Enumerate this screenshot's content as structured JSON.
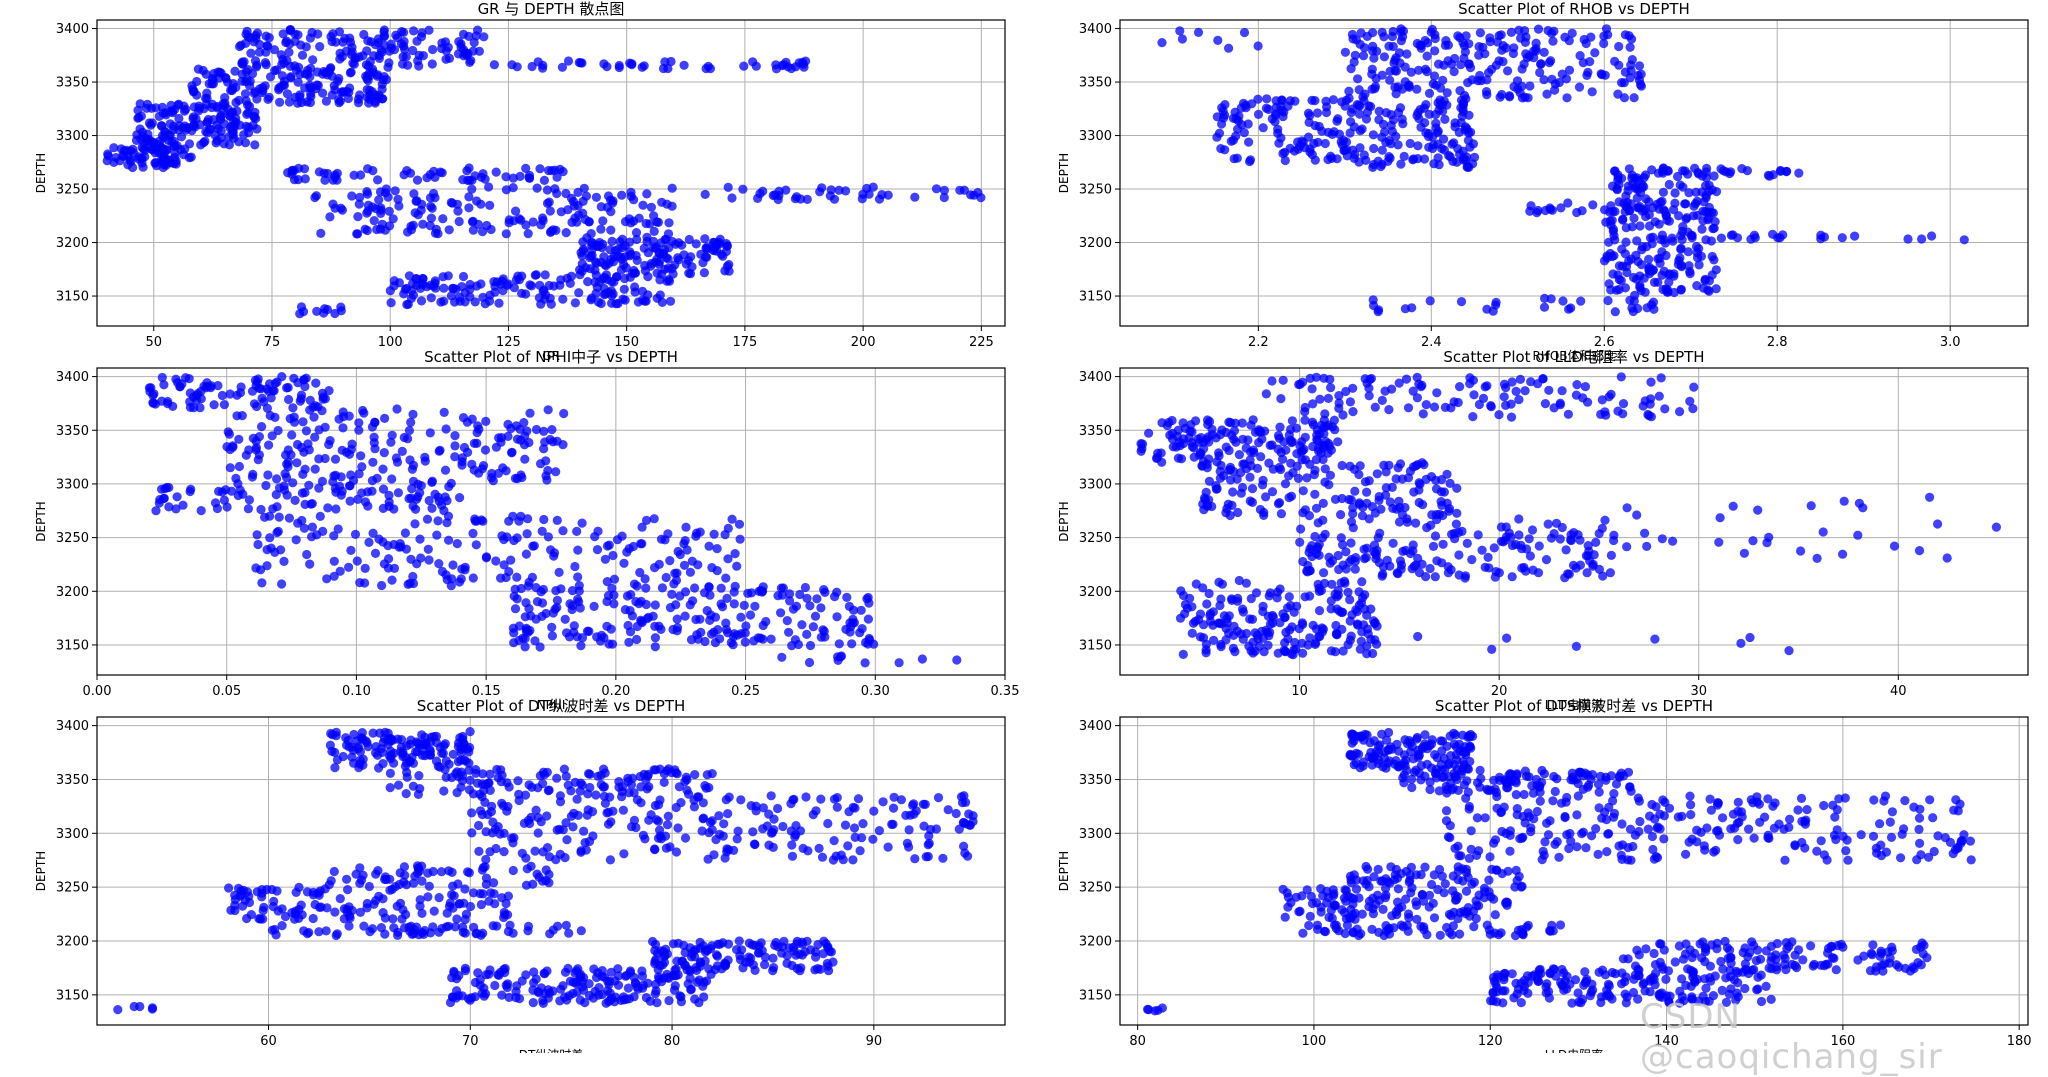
{
  "colors": {
    "marker": "#0000ff",
    "grid": "#b0b0b0",
    "axis": "#000000",
    "text": "#000000"
  },
  "watermark": "CSDN @caoqichang_sir",
  "chart_data": [
    {
      "type": "scatter",
      "title": "GR 与 DEPTH 散点图",
      "xlabel": "GR",
      "ylabel": "DEPTH",
      "xlim": [
        38,
        230
      ],
      "ylim": [
        3122,
        3408
      ],
      "xticks": [
        50,
        75,
        100,
        125,
        150,
        175,
        200,
        225
      ],
      "yticks": [
        3150,
        3200,
        3250,
        3300,
        3350,
        3400
      ],
      "grid": true,
      "clusters": [
        {
          "x": [
            40,
            58
          ],
          "y": [
            3270,
            3290
          ],
          "n": 70
        },
        {
          "x": [
            46,
            72
          ],
          "y": [
            3290,
            3330
          ],
          "n": 150
        },
        {
          "x": [
            58,
            100
          ],
          "y": [
            3330,
            3365
          ],
          "n": 160
        },
        {
          "x": [
            68,
            120
          ],
          "y": [
            3365,
            3400
          ],
          "n": 150
        },
        {
          "x": [
            120,
            190
          ],
          "y": [
            3362,
            3370
          ],
          "n": 45
        },
        {
          "x": [
            77,
            140
          ],
          "y": [
            3258,
            3270
          ],
          "n": 60
        },
        {
          "x": [
            82,
            225
          ],
          "y": [
            3240,
            3252
          ],
          "n": 80
        },
        {
          "x": [
            85,
            160
          ],
          "y": [
            3208,
            3240
          ],
          "n": 130
        },
        {
          "x": [
            140,
            172
          ],
          "y": [
            3170,
            3205
          ],
          "n": 140
        },
        {
          "x": [
            100,
            160
          ],
          "y": [
            3142,
            3170
          ],
          "n": 150
        },
        {
          "x": [
            80,
            90
          ],
          "y": [
            3133,
            3140
          ],
          "n": 10
        }
      ]
    },
    {
      "type": "scatter",
      "title": "Scatter Plot of RHOB vs DEPTH",
      "xlabel": "RHOB体积密度",
      "ylabel": "DEPTH",
      "xlim": [
        2.04,
        3.09
      ],
      "ylim": [
        3122,
        3408
      ],
      "xticks": [
        2.2,
        2.4,
        2.6,
        2.8,
        3.0
      ],
      "yticks": [
        3150,
        3200,
        3250,
        3300,
        3350,
        3400
      ],
      "grid": true,
      "clusters": [
        {
          "x": [
            2.15,
            2.45
          ],
          "y": [
            3270,
            3335
          ],
          "n": 250
        },
        {
          "x": [
            2.3,
            2.65
          ],
          "y": [
            3335,
            3400
          ],
          "n": 230
        },
        {
          "x": [
            2.08,
            2.2
          ],
          "y": [
            3380,
            3400
          ],
          "n": 8
        },
        {
          "x": [
            2.6,
            2.73
          ],
          "y": [
            3150,
            3270
          ],
          "n": 250
        },
        {
          "x": [
            2.73,
            2.83
          ],
          "y": [
            3262,
            3270
          ],
          "n": 15
        },
        {
          "x": [
            2.73,
            3.05
          ],
          "y": [
            3202,
            3208
          ],
          "n": 20
        },
        {
          "x": [
            2.5,
            2.72
          ],
          "y": [
            3228,
            3237
          ],
          "n": 25
        },
        {
          "x": [
            2.33,
            2.66
          ],
          "y": [
            3135,
            3148
          ],
          "n": 30
        }
      ]
    },
    {
      "type": "scatter",
      "title": "Scatter Plot of NPHI中子 vs DEPTH",
      "xlabel": "NPHI",
      "ylabel": "DEPTH",
      "xlim": [
        0.0,
        0.35
      ],
      "ylim": [
        3122,
        3408
      ],
      "xticks": [
        0.0,
        0.05,
        0.1,
        0.15,
        0.2,
        0.25,
        0.3,
        0.35
      ],
      "yticks": [
        3150,
        3200,
        3250,
        3300,
        3350,
        3400
      ],
      "grid": true,
      "clusters": [
        {
          "x": [
            0.02,
            0.09
          ],
          "y": [
            3370,
            3400
          ],
          "n": 90
        },
        {
          "x": [
            0.05,
            0.18
          ],
          "y": [
            3300,
            3370
          ],
          "n": 200
        },
        {
          "x": [
            0.02,
            0.14
          ],
          "y": [
            3275,
            3300
          ],
          "n": 90
        },
        {
          "x": [
            0.06,
            0.25
          ],
          "y": [
            3205,
            3270
          ],
          "n": 200
        },
        {
          "x": [
            0.16,
            0.3
          ],
          "y": [
            3148,
            3205
          ],
          "n": 230
        },
        {
          "x": [
            0.26,
            0.335
          ],
          "y": [
            3133,
            3140
          ],
          "n": 10
        }
      ]
    },
    {
      "type": "scatter",
      "title": "Scatter Plot of LLD电阻率 vs DEPTH",
      "xlabel": "LLD电阻率",
      "ylabel": "DEPTH",
      "xlim": [
        1,
        46.5
      ],
      "ylim": [
        3122,
        3408
      ],
      "xticks": [
        10,
        20,
        30,
        40
      ],
      "yticks": [
        3150,
        3200,
        3250,
        3300,
        3350,
        3400
      ],
      "grid": true,
      "clusters": [
        {
          "x": [
            2,
            12
          ],
          "y": [
            3320,
            3360
          ],
          "n": 150
        },
        {
          "x": [
            5,
            18
          ],
          "y": [
            3270,
            3320
          ],
          "n": 160
        },
        {
          "x": [
            8,
            30
          ],
          "y": [
            3362,
            3400
          ],
          "n": 120
        },
        {
          "x": [
            10,
            26
          ],
          "y": [
            3212,
            3268
          ],
          "n": 180
        },
        {
          "x": [
            26,
            45
          ],
          "y": [
            3230,
            3290
          ],
          "n": 30
        },
        {
          "x": [
            4,
            14
          ],
          "y": [
            3140,
            3210
          ],
          "n": 200
        },
        {
          "x": [
            14,
            35
          ],
          "y": [
            3140,
            3160
          ],
          "n": 8
        }
      ]
    },
    {
      "type": "scatter",
      "title": "Scatter Plot of DT纵波时差 vs DEPTH",
      "xlabel": "DT纵波时差",
      "ylabel": "DEPTH",
      "xlim": [
        51.5,
        96.5
      ],
      "ylim": [
        3122,
        3408
      ],
      "xticks": [
        60,
        70,
        80,
        90
      ],
      "yticks": [
        3150,
        3200,
        3250,
        3300,
        3350,
        3400
      ],
      "grid": true,
      "clusters": [
        {
          "x": [
            63,
            70
          ],
          "y": [
            3360,
            3395
          ],
          "n": 130
        },
        {
          "x": [
            66,
            82
          ],
          "y": [
            3335,
            3360
          ],
          "n": 120
        },
        {
          "x": [
            70,
            95
          ],
          "y": [
            3275,
            3335
          ],
          "n": 250
        },
        {
          "x": [
            58,
            72
          ],
          "y": [
            3220,
            3250
          ],
          "n": 120
        },
        {
          "x": [
            63,
            74
          ],
          "y": [
            3250,
            3270
          ],
          "n": 60
        },
        {
          "x": [
            60,
            76
          ],
          "y": [
            3205,
            3215
          ],
          "n": 60
        },
        {
          "x": [
            79,
            88
          ],
          "y": [
            3172,
            3200
          ],
          "n": 130
        },
        {
          "x": [
            69,
            82
          ],
          "y": [
            3142,
            3175
          ],
          "n": 180
        },
        {
          "x": [
            52.5,
            54.5
          ],
          "y": [
            3134,
            3140
          ],
          "n": 5
        }
      ]
    },
    {
      "type": "scatter",
      "title": "Scatter Plot of DTS横波时差 vs DEPTH",
      "xlabel": "LLD电阻率",
      "ylabel": "DEPTH",
      "xlim": [
        78,
        181
      ],
      "ylim": [
        3122,
        3408
      ],
      "xticks": [
        80,
        100,
        120,
        140,
        160,
        180
      ],
      "yticks": [
        3150,
        3200,
        3250,
        3300,
        3350,
        3400
      ],
      "grid": true,
      "clusters": [
        {
          "x": [
            104,
            118
          ],
          "y": [
            3360,
            3395
          ],
          "n": 130
        },
        {
          "x": [
            110,
            136
          ],
          "y": [
            3335,
            3360
          ],
          "n": 120
        },
        {
          "x": [
            115,
            175
          ],
          "y": [
            3275,
            3335
          ],
          "n": 250
        },
        {
          "x": [
            96,
            122
          ],
          "y": [
            3220,
            3250
          ],
          "n": 120
        },
        {
          "x": [
            104,
            124
          ],
          "y": [
            3250,
            3270
          ],
          "n": 60
        },
        {
          "x": [
            98,
            128
          ],
          "y": [
            3205,
            3215
          ],
          "n": 60
        },
        {
          "x": [
            135,
            170
          ],
          "y": [
            3172,
            3200
          ],
          "n": 130
        },
        {
          "x": [
            120,
            152
          ],
          "y": [
            3142,
            3175
          ],
          "n": 180
        },
        {
          "x": [
            80,
            84
          ],
          "y": [
            3134,
            3140
          ],
          "n": 5
        }
      ]
    }
  ]
}
